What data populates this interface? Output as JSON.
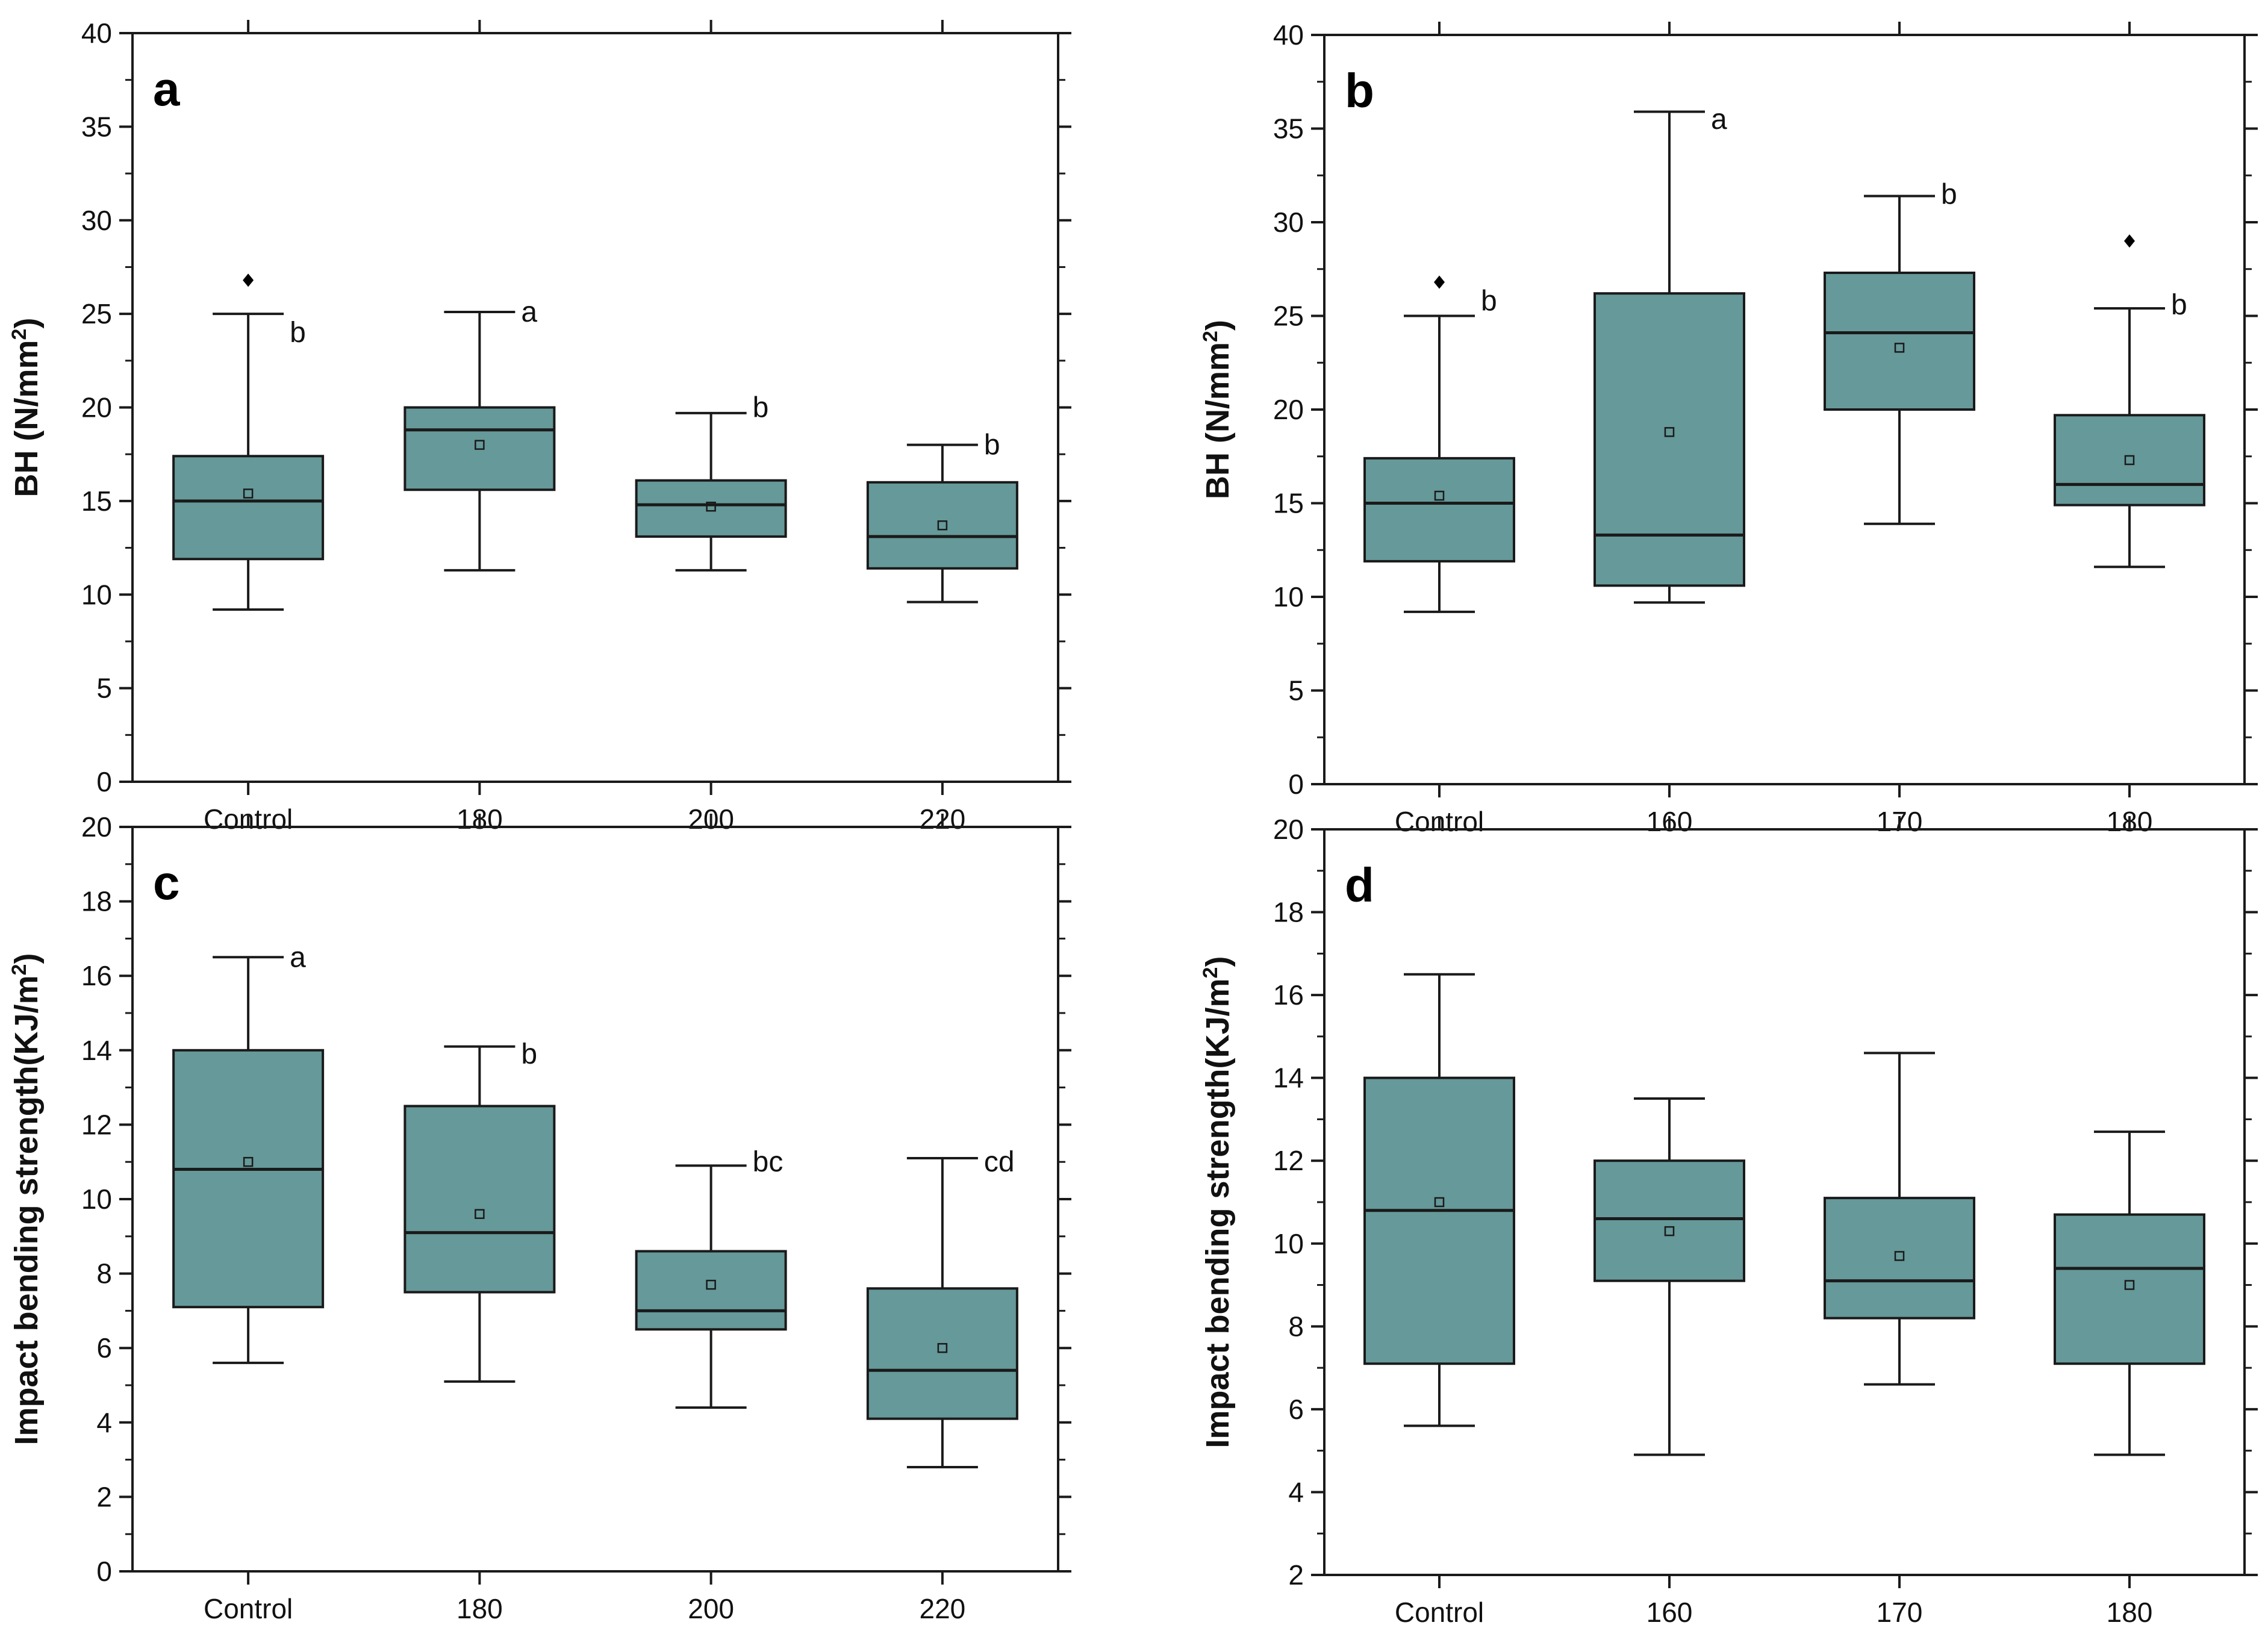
{
  "colors": {
    "box_fill": "#669999",
    "stroke": "#1a1a1a"
  },
  "chart_data": [
    {
      "type": "box",
      "panel_label": "a",
      "ylabel": "BH (N/mm",
      "ylabel_sup": "2",
      "ylabel_end": ")",
      "ylim": [
        0,
        40
      ],
      "y_major_step": 5,
      "y_ticks": [
        "0",
        "5",
        "10",
        "15",
        "20",
        "25",
        "30",
        "35",
        "40"
      ],
      "categories": [
        "Control",
        "180",
        "200",
        "220"
      ],
      "boxes": [
        {
          "whisker_low": 9.2,
          "q1": 11.9,
          "median": 15.0,
          "q3": 17.4,
          "whisker_high": 25.0,
          "mean": 15.4,
          "outliers": [
            26.8
          ],
          "sig": "b",
          "sig_y": 24.0
        },
        {
          "whisker_low": 11.3,
          "q1": 15.6,
          "median": 18.8,
          "q3": 20.0,
          "whisker_high": 25.1,
          "mean": 18.0,
          "outliers": [],
          "sig": "a",
          "sig_y": 25.1
        },
        {
          "whisker_low": 11.3,
          "q1": 13.1,
          "median": 14.8,
          "q3": 16.1,
          "whisker_high": 19.7,
          "mean": 14.7,
          "outliers": [],
          "sig": "b",
          "sig_y": 20.0
        },
        {
          "whisker_low": 9.6,
          "q1": 11.4,
          "median": 13.1,
          "q3": 16.0,
          "whisker_high": 18.0,
          "mean": 13.7,
          "outliers": [],
          "sig": "b",
          "sig_y": 18.0
        }
      ]
    },
    {
      "type": "box",
      "panel_label": "b",
      "ylabel": "BH (N/mm",
      "ylabel_sup": "2",
      "ylabel_end": ")",
      "ylim": [
        0,
        40
      ],
      "y_major_step": 5,
      "y_ticks": [
        "0",
        "5",
        "10",
        "15",
        "20",
        "25",
        "30",
        "35",
        "40"
      ],
      "categories": [
        "Control",
        "160",
        "170",
        "180"
      ],
      "boxes": [
        {
          "whisker_low": 9.2,
          "q1": 11.9,
          "median": 15.0,
          "q3": 17.4,
          "whisker_high": 25.0,
          "mean": 15.4,
          "outliers": [
            26.8
          ],
          "sig": "b",
          "sig_y": 25.8
        },
        {
          "whisker_low": 9.7,
          "q1": 10.6,
          "median": 13.3,
          "q3": 26.2,
          "whisker_high": 35.9,
          "mean": 18.8,
          "outliers": [],
          "sig": "a",
          "sig_y": 35.5
        },
        {
          "whisker_low": 13.9,
          "q1": 20.0,
          "median": 24.1,
          "q3": 27.3,
          "whisker_high": 31.4,
          "mean": 23.3,
          "outliers": [],
          "sig": "b",
          "sig_y": 31.5
        },
        {
          "whisker_low": 11.6,
          "q1": 14.9,
          "median": 16.0,
          "q3": 19.7,
          "whisker_high": 25.4,
          "mean": 17.3,
          "outliers": [
            29.0
          ],
          "sig": "b",
          "sig_y": 25.6
        }
      ]
    },
    {
      "type": "box",
      "panel_label": "c",
      "ylabel": "Impact bending strength(KJ/m",
      "ylabel_sup": "2",
      "ylabel_end": ")",
      "ylim": [
        0,
        20
      ],
      "y_major_step": 2,
      "y_ticks": [
        "0",
        "2",
        "4",
        "6",
        "8",
        "10",
        "12",
        "14",
        "16",
        "18",
        "20"
      ],
      "categories": [
        "Control",
        "180",
        "200",
        "220"
      ],
      "boxes": [
        {
          "whisker_low": 5.6,
          "q1": 7.1,
          "median": 10.8,
          "q3": 14.0,
          "whisker_high": 16.5,
          "mean": 11.0,
          "outliers": [],
          "sig": "a",
          "sig_y": 16.5
        },
        {
          "whisker_low": 5.1,
          "q1": 7.5,
          "median": 9.1,
          "q3": 12.5,
          "whisker_high": 14.1,
          "mean": 9.6,
          "outliers": [],
          "sig": "b",
          "sig_y": 13.9
        },
        {
          "whisker_low": 4.4,
          "q1": 6.5,
          "median": 7.0,
          "q3": 8.6,
          "whisker_high": 10.9,
          "mean": 7.7,
          "outliers": [],
          "sig": "bc",
          "sig_y": 11.0
        },
        {
          "whisker_low": 2.8,
          "q1": 4.1,
          "median": 5.4,
          "q3": 7.6,
          "whisker_high": 11.1,
          "mean": 6.0,
          "outliers": [],
          "sig": "cd",
          "sig_y": 11.0
        }
      ]
    },
    {
      "type": "box",
      "panel_label": "d",
      "ylabel": "Impact bending strength(KJ/m",
      "ylabel_sup": "2",
      "ylabel_end": ")",
      "ylim": [
        2,
        20
      ],
      "y_major_step": 2,
      "y_ticks": [
        "2",
        "4",
        "6",
        "8",
        "10",
        "12",
        "14",
        "16",
        "18",
        "20"
      ],
      "categories": [
        "Control",
        "160",
        "170",
        "180"
      ],
      "boxes": [
        {
          "whisker_low": 5.6,
          "q1": 7.1,
          "median": 10.8,
          "q3": 14.0,
          "whisker_high": 16.5,
          "mean": 11.0,
          "outliers": [],
          "sig": ""
        },
        {
          "whisker_low": 4.9,
          "q1": 9.1,
          "median": 10.6,
          "q3": 12.0,
          "whisker_high": 13.5,
          "mean": 10.3,
          "outliers": [],
          "sig": ""
        },
        {
          "whisker_low": 6.6,
          "q1": 8.2,
          "median": 9.1,
          "q3": 11.1,
          "whisker_high": 14.6,
          "mean": 9.7,
          "outliers": [],
          "sig": ""
        },
        {
          "whisker_low": 4.9,
          "q1": 7.1,
          "median": 9.4,
          "q3": 10.7,
          "whisker_high": 12.7,
          "mean": 9.0,
          "outliers": [],
          "sig": ""
        }
      ]
    }
  ]
}
